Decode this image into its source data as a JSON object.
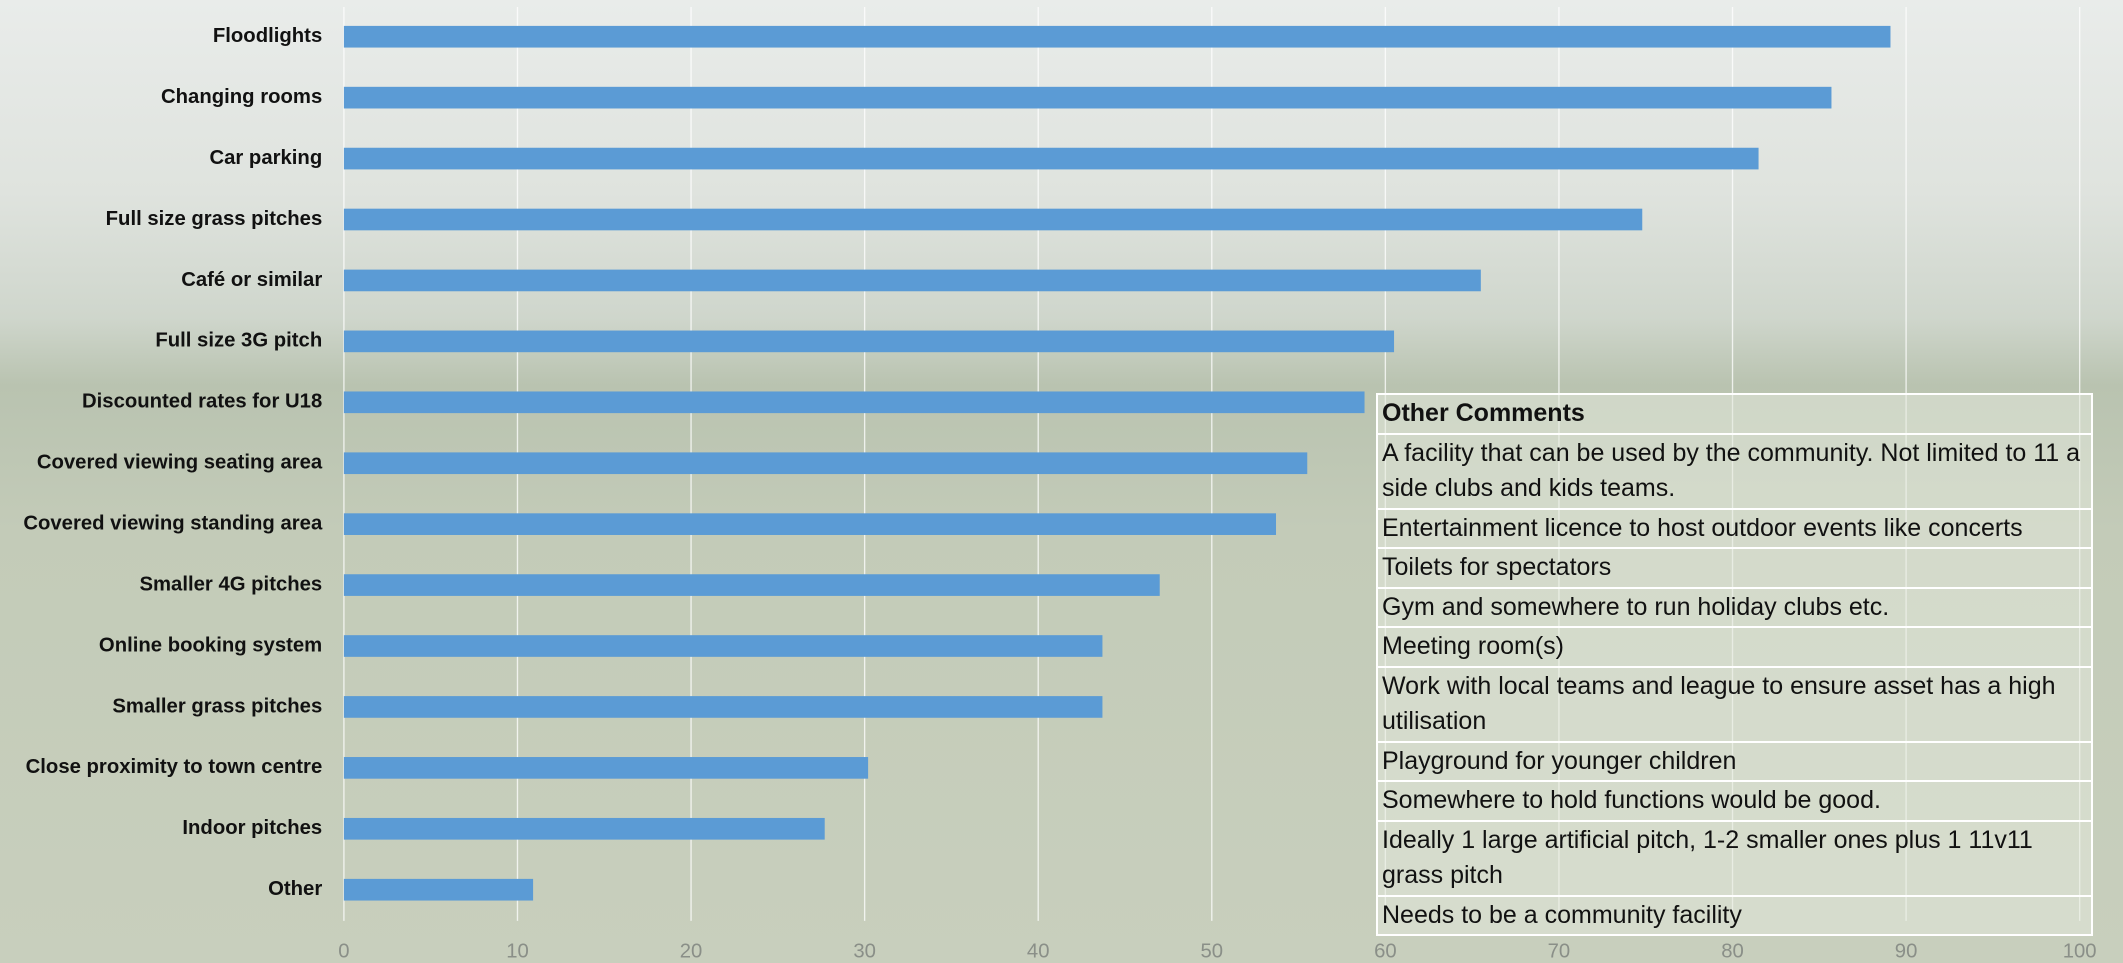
{
  "chart_data": {
    "type": "bar",
    "orientation": "horizontal",
    "categories": [
      "Floodlights",
      "Changing rooms",
      "Car parking",
      "Full size grass pitches",
      "Café or similar",
      "Full size 3G pitch",
      "Discounted rates for U18",
      "Covered viewing seating area",
      "Covered viewing standing area",
      "Smaller 4G pitches",
      "Online booking system",
      "Smaller grass pitches",
      "Close proximity to town centre",
      "Indoor pitches",
      "Other"
    ],
    "values": [
      89.1,
      85.7,
      81.5,
      74.8,
      65.5,
      60.5,
      58.8,
      55.5,
      53.7,
      47.0,
      43.7,
      43.7,
      30.2,
      27.7,
      10.9
    ],
    "color": "#5b9bd5",
    "xlim": [
      0,
      100
    ],
    "xticks": [
      0,
      10,
      20,
      30,
      40,
      50,
      60,
      70,
      80,
      90,
      100
    ],
    "grid": true
  },
  "comments": {
    "title": "Other Comments",
    "rows": [
      "A facility that can be used by the community. Not limited to 11 a side clubs and kids teams.",
      "Entertainment licence to host outdoor events like concerts",
      "Toilets for spectators",
      "Gym and somewhere to run holiday clubs etc.",
      "Meeting room(s)",
      "Work with local teams and league to ensure asset has a high utilisation",
      "Playground for younger children",
      "Somewhere to hold functions would be good.",
      "Ideally 1 large artificial pitch, 1-2 smaller ones plus 1 11v11 grass pitch",
      "Needs to be a community facility"
    ]
  }
}
